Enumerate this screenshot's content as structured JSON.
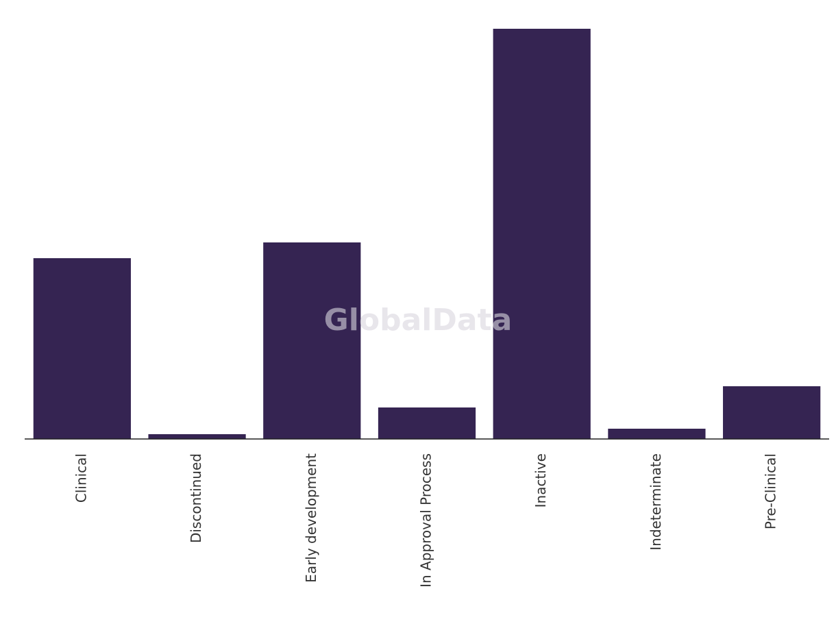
{
  "chart_data": {
    "type": "bar",
    "categories": [
      "Clinical",
      "Discontinued",
      "Early development",
      "In Approval Process",
      "Inactive",
      "Indeterminate",
      "Pre-Clinical"
    ],
    "values": [
      264,
      7,
      287,
      46,
      599,
      15,
      77
    ],
    "color": "#352452",
    "watermark": "GlobalData"
  }
}
